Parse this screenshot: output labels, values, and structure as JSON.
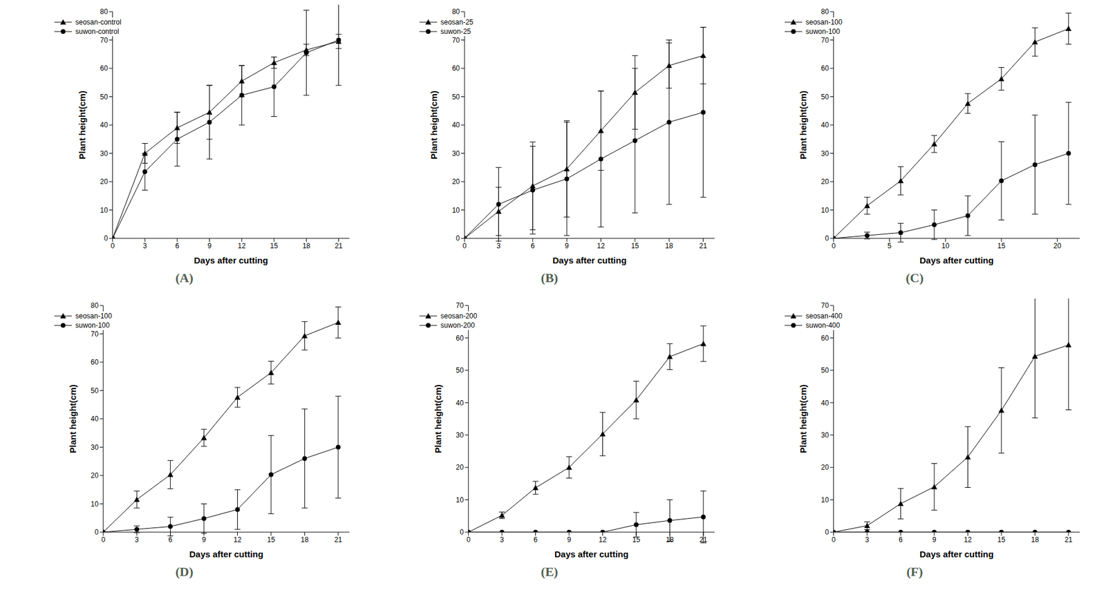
{
  "chart_data": [
    {
      "type": "line",
      "title": "(A)",
      "x_label": "Days after cutting",
      "y_label": "Plant height(cm)",
      "x": [
        0,
        3,
        6,
        9,
        12,
        15,
        18,
        21
      ],
      "xlim": [
        0,
        22
      ],
      "xticks": [
        0,
        3,
        6,
        9,
        12,
        15,
        18,
        21
      ],
      "ylim": [
        0,
        80
      ],
      "yticks": [
        0,
        10,
        20,
        30,
        40,
        50,
        60,
        70,
        80
      ],
      "legend": "upper left",
      "series": [
        {
          "name": "seosan-control",
          "color": "#000000",
          "marker": "triangle",
          "values": [
            0,
            30,
            39,
            44.5,
            55.5,
            62,
            66.5,
            69.5
          ],
          "errors": [
            0,
            3.5,
            5.5,
            9.5,
            5.5,
            2,
            2,
            2.5
          ]
        },
        {
          "name": "suwon-control",
          "color": "#000000",
          "marker": "circle",
          "values": [
            0,
            23.5,
            35,
            41,
            50.5,
            53.5,
            65.5,
            70
          ],
          "errors": [
            0,
            6.5,
            9.5,
            13,
            10.5,
            10.5,
            15,
            16
          ]
        }
      ]
    },
    {
      "type": "line",
      "title": "(B)",
      "x_label": "Days after cutting",
      "y_label": "Plant height(cm)",
      "x": [
        0,
        3,
        6,
        9,
        12,
        15,
        18,
        21
      ],
      "xlim": [
        0,
        22
      ],
      "xticks": [
        0,
        3,
        6,
        9,
        12,
        15,
        18,
        21
      ],
      "ylim": [
        0,
        80
      ],
      "yticks": [
        0,
        10,
        20,
        30,
        40,
        50,
        60,
        70,
        80
      ],
      "legend": "upper left",
      "series": [
        {
          "name": "seosan-25",
          "color": "#000000",
          "marker": "triangle",
          "values": [
            0,
            9.5,
            18.5,
            24.5,
            38,
            51.5,
            61,
            64.5
          ],
          "errors": [
            0,
            8.5,
            15.5,
            17,
            14,
            13,
            8,
            10
          ]
        },
        {
          "name": "suwon-25",
          "color": "#000000",
          "marker": "circle",
          "values": [
            0,
            12,
            17,
            21,
            28,
            34.5,
            41,
            44.5
          ],
          "errors": [
            0,
            13,
            15.5,
            20,
            24,
            25.5,
            29,
            30
          ]
        }
      ]
    },
    {
      "type": "line",
      "title": "(C)",
      "x_label": "Days after cutting",
      "y_label": "Plant height(cm)",
      "x": [
        0,
        3,
        6,
        9,
        12,
        15,
        18,
        21
      ],
      "xlim": [
        0,
        22
      ],
      "xticks": [
        0,
        5,
        10,
        15,
        20
      ],
      "ylim": [
        0,
        80
      ],
      "yticks": [
        0,
        10,
        20,
        30,
        40,
        50,
        60,
        70,
        80
      ],
      "legend": "upper left",
      "series": [
        {
          "name": "seosan-100",
          "color": "#000000",
          "marker": "triangle",
          "values": [
            0,
            11.5,
            20.3,
            33.3,
            47.6,
            56.3,
            69.3,
            74
          ],
          "errors": [
            0,
            3,
            5,
            3,
            3.5,
            4,
            5,
            5.5
          ]
        },
        {
          "name": "suwon-100",
          "color": "#000000",
          "marker": "circle",
          "values": [
            0,
            1,
            2,
            4.8,
            8,
            20.3,
            26,
            30
          ],
          "errors": [
            0,
            1.2,
            3.3,
            5.2,
            7,
            13.8,
            17.5,
            18
          ]
        }
      ]
    },
    {
      "type": "line",
      "title": "(D)",
      "x_label": "Days after cutting",
      "y_label": "Plant height(cm)",
      "x": [
        0,
        3,
        6,
        9,
        12,
        15,
        18,
        21
      ],
      "xlim": [
        0,
        22
      ],
      "xticks": [
        0,
        3,
        6,
        9,
        12,
        15,
        18,
        21
      ],
      "ylim": [
        0,
        80
      ],
      "yticks": [
        0,
        10,
        20,
        30,
        40,
        50,
        60,
        70,
        80
      ],
      "legend": "upper left",
      "series": [
        {
          "name": "seosan-100",
          "color": "#000000",
          "marker": "triangle",
          "values": [
            0,
            11.5,
            20.3,
            33.3,
            47.6,
            56.3,
            69.3,
            74
          ],
          "errors": [
            0,
            3,
            5,
            3,
            3.5,
            4,
            5,
            5.5
          ]
        },
        {
          "name": "suwon-100",
          "color": "#000000",
          "marker": "circle",
          "values": [
            0,
            1,
            2,
            4.8,
            8,
            20.3,
            26,
            30
          ],
          "errors": [
            0,
            1.2,
            3.3,
            5.2,
            7,
            13.8,
            17.5,
            18
          ]
        }
      ]
    },
    {
      "type": "line",
      "title": "(E)",
      "x_label": "Days after cutting",
      "y_label": "Plant height(cm)",
      "x": [
        0,
        3,
        6,
        9,
        12,
        15,
        18,
        21
      ],
      "xlim": [
        0,
        22
      ],
      "xticks": [
        0,
        3,
        6,
        9,
        12,
        15,
        18,
        21
      ],
      "ylim": [
        0,
        70
      ],
      "yticks": [
        0,
        10,
        20,
        30,
        40,
        50,
        60,
        70
      ],
      "legend": "upper left",
      "series": [
        {
          "name": "seosan-200",
          "color": "#000000",
          "marker": "triangle",
          "values": [
            0,
            5.2,
            13.7,
            20,
            30.3,
            40.8,
            54.2,
            58.2
          ],
          "errors": [
            0,
            1,
            2,
            3.3,
            6.7,
            5.8,
            4,
            5.5
          ]
        },
        {
          "name": "suwon-200",
          "color": "#000000",
          "marker": "circle",
          "values": [
            0,
            0,
            0,
            0,
            0,
            2.3,
            3.6,
            4.7
          ],
          "errors": [
            0,
            0,
            0,
            0,
            0,
            3.8,
            6.4,
            8
          ]
        }
      ]
    },
    {
      "type": "line",
      "title": "(F)",
      "x_label": "Days after cutting",
      "y_label": "Plant height(cm)",
      "x": [
        0,
        3,
        6,
        9,
        12,
        15,
        18,
        21
      ],
      "xlim": [
        0,
        22
      ],
      "xticks": [
        0,
        3,
        6,
        9,
        12,
        15,
        18,
        21
      ],
      "ylim": [
        0,
        70
      ],
      "yticks": [
        0,
        10,
        20,
        30,
        40,
        50,
        60,
        70
      ],
      "legend": "upper left",
      "series": [
        {
          "name": "seosan-400",
          "color": "#000000",
          "marker": "triangle",
          "values": [
            0,
            2,
            8.8,
            14,
            23.2,
            37.6,
            54.3,
            57.8
          ],
          "errors": [
            0,
            1.2,
            4.7,
            7.2,
            9.4,
            13.2,
            19,
            20
          ]
        },
        {
          "name": "suwon-400",
          "color": "#000000",
          "marker": "circle",
          "values": [
            0,
            0,
            0,
            0,
            0,
            0,
            0,
            0
          ],
          "errors": [
            0,
            0,
            0,
            0,
            0,
            0,
            0,
            0
          ]
        }
      ]
    }
  ]
}
